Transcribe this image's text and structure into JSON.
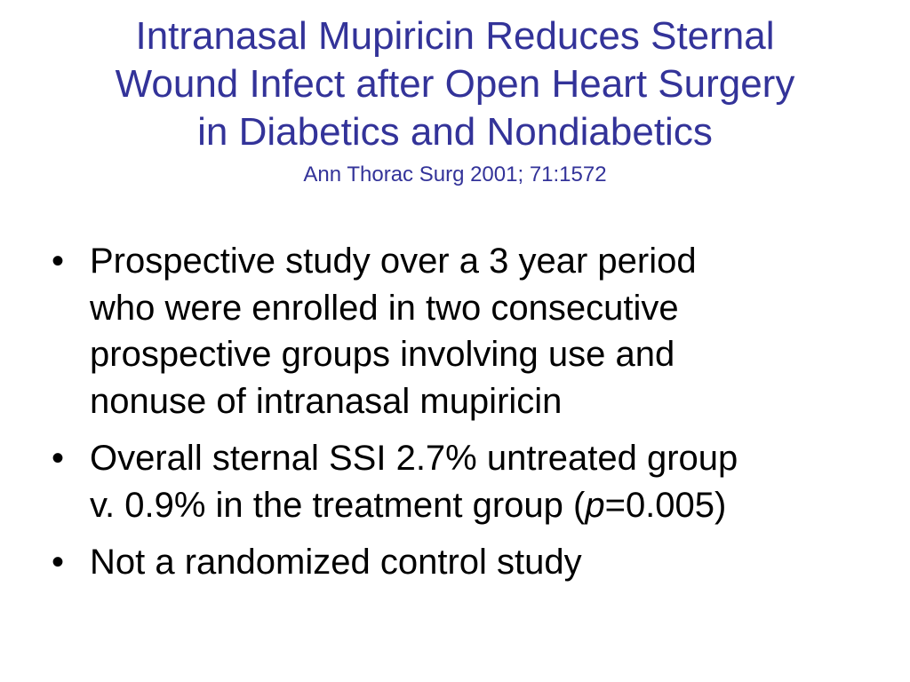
{
  "slide": {
    "title_lines": [
      "Intranasal Mupiricin Reduces Sternal",
      "Wound Infect after Open Heart Surgery",
      "in Diabetics and Nondiabetics"
    ],
    "citation": "Ann Thorac Surg 2001; 71:1572",
    "bullet_symbol": "•",
    "bullets": [
      {
        "lines": [
          "Prospective study over a 3 year period",
          "who were enrolled in two consecutive",
          "prospective groups involving use and",
          "nonuse of intranasal mupiricin"
        ]
      },
      {
        "line1": "Overall sternal SSI 2.7% untreated group",
        "line2_before": "v. 0.9% in the treatment group (",
        "line2_italic": "p",
        "line2_after": "=0.005)"
      },
      {
        "lines": [
          "Not a randomized control study"
        ]
      }
    ],
    "colors": {
      "title": "#333399",
      "body_text": "#000000",
      "background": "#ffffff"
    }
  }
}
